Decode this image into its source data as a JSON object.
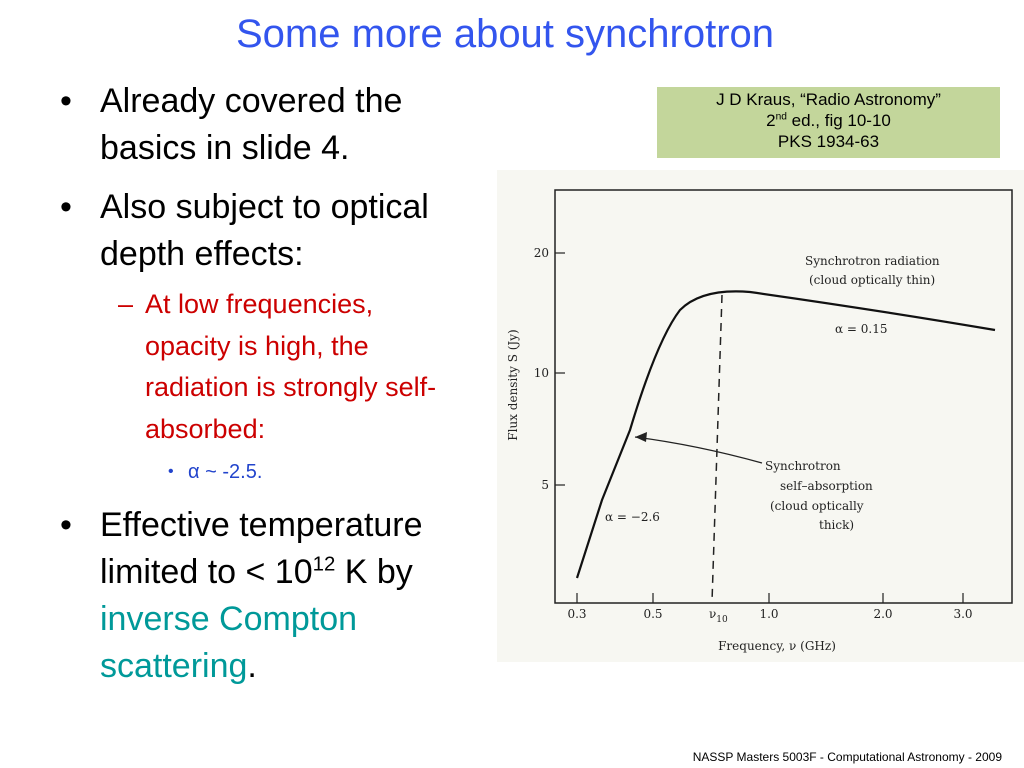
{
  "title": "Some more about synchrotron",
  "bullets": [
    {
      "text": "Already covered the basics in slide 4."
    },
    {
      "text": "Also subject to optical depth effects:",
      "sub": [
        {
          "text": "At low frequencies, opacity is high, the radiation is strongly self-absorbed:",
          "sub": [
            {
              "text": "α ~ -2.5."
            }
          ]
        }
      ]
    },
    {
      "parts": [
        "Effective temperature limited to < 10",
        "12",
        " K by ",
        "inverse Compton scattering",
        "."
      ]
    }
  ],
  "citation": {
    "line1": "J D Kraus, “Radio Astronomy”",
    "line2": [
      "2",
      "nd",
      " ed., fig 10-10"
    ],
    "line3": "PKS 1934-63"
  },
  "figure": {
    "y_label": "Flux density  S (Jy)",
    "y_ticks": [
      "20",
      "10",
      "5"
    ],
    "x_ticks": [
      "0.3",
      "0.5",
      "1.0",
      "2.0",
      "3.0"
    ],
    "x_marker": [
      "ν",
      "10"
    ],
    "x_label": "Frequency, ν (GHz)",
    "annotations": [
      "Synchrotron radiation",
      "(cloud optically thin)",
      "α = 0.15",
      "Synchrotron",
      "self–absorption",
      "(cloud optically",
      "thick)",
      "α = −2.6"
    ]
  },
  "footer": "NASSP Masters 5003F - Computational Astronomy - 2009"
}
